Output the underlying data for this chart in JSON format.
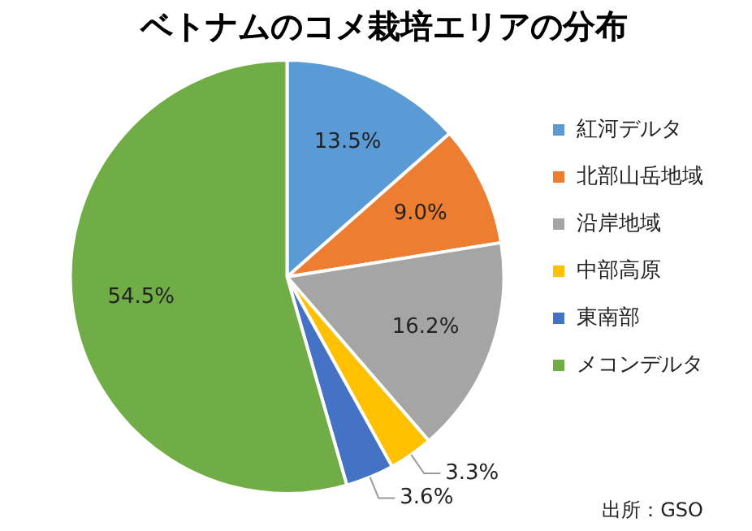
{
  "chart_data": {
    "type": "pie",
    "title": "ベトナムのコメ栽培エリアの分布",
    "categories": [
      "紅河デルタ",
      "北部山岳地域",
      "沿岸地域",
      "中部高原",
      "東南部",
      "メコンデルタ"
    ],
    "values": [
      13.5,
      9.0,
      16.2,
      3.3,
      3.6,
      54.5
    ],
    "value_labels": [
      "13.5%",
      "9.0%",
      "16.2%",
      "3.3%",
      "3.6%",
      "54.5%"
    ],
    "colors": [
      "#5b9bd5",
      "#ed7d31",
      "#a5a5a5",
      "#ffc000",
      "#4472c4",
      "#70ad47"
    ],
    "legend": "right",
    "annotations": [
      "出所：GSO"
    ]
  }
}
